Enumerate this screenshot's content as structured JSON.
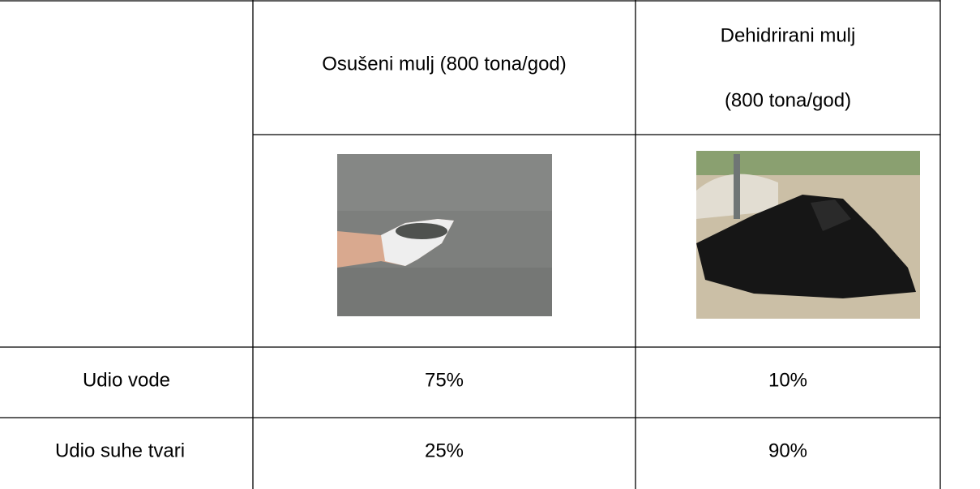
{
  "table": {
    "columns": [
      {
        "lines": [
          "Osušeni mulj (800 tona/god)"
        ]
      },
      {
        "lines": [
          "Dehidrirani mulj",
          "(800 tona/god)"
        ]
      }
    ],
    "rows": [
      {
        "label": "Udio vode",
        "cells": [
          "75%",
          "10%"
        ]
      },
      {
        "label": "Udio suhe tvari",
        "cells": [
          "25%",
          "90%"
        ]
      }
    ]
  }
}
